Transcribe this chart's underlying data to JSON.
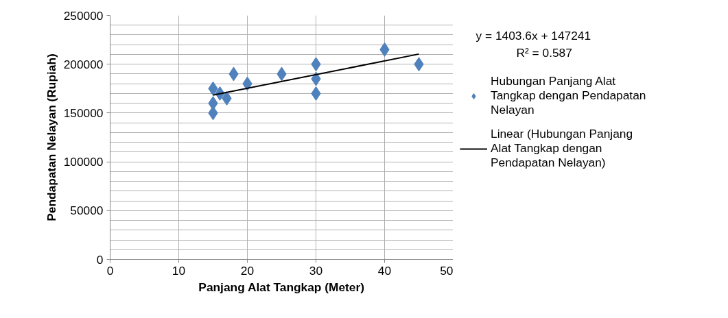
{
  "chart_data": {
    "type": "scatter",
    "xlabel": "Panjang Alat Tangkap (Meter)",
    "ylabel": "Pendapatan Nelayan (Rupiah)",
    "xlim": [
      0,
      50
    ],
    "xticks": [
      0,
      10,
      20,
      30,
      40,
      50
    ],
    "ylim": [
      0,
      250000
    ],
    "yticks": [
      0,
      {
        "value": 10000,
        "label": null
      },
      {
        "value": 20000,
        "label": null
      },
      {
        "value": 30000,
        "label": null
      },
      {
        "value": 40000,
        "label": null
      },
      50000,
      {
        "value": 60000,
        "label": null
      },
      {
        "value": 70000,
        "label": null
      },
      {
        "value": 80000,
        "label": null
      },
      {
        "value": 90000,
        "label": null
      },
      100000,
      {
        "value": 110000,
        "label": null
      },
      {
        "value": 120000,
        "label": null
      },
      {
        "value": 130000,
        "label": null
      },
      {
        "value": 140000,
        "label": null
      },
      150000,
      {
        "value": 160000,
        "label": null
      },
      {
        "value": 170000,
        "label": null
      },
      {
        "value": 180000,
        "label": null
      },
      {
        "value": 190000,
        "label": null
      },
      200000,
      {
        "value": 210000,
        "label": null
      },
      {
        "value": 220000,
        "label": null
      },
      {
        "value": 230000,
        "label": null
      },
      {
        "value": 240000,
        "label": null
      },
      250000
    ],
    "grid": true,
    "legend": "right",
    "marker": "diamond",
    "series": [
      {
        "name": "Hubungan Panjang Alat Tangkap dengan Pendapatan Nelayan",
        "color": "#4f81bd",
        "x": [
          15,
          15,
          15,
          16,
          17,
          18,
          20,
          25,
          30,
          30,
          30,
          40,
          45
        ],
        "values": [
          175000,
          160000,
          150000,
          170000,
          165000,
          190000,
          180000,
          190000,
          200000,
          185000,
          170000,
          215000,
          200000
        ]
      },
      {
        "name": "Linear (Hubungan Panjang Alat Tangkap dengan Pendapatan Nelayan)",
        "type": "line",
        "color": "#000000",
        "line_style": "solid",
        "marker": "none",
        "x": [
          15,
          45
        ],
        "values": [
          168300,
          210400
        ]
      }
    ],
    "annotations": [
      "y = 1403.6x + 147241",
      "R² = 0.587"
    ]
  }
}
